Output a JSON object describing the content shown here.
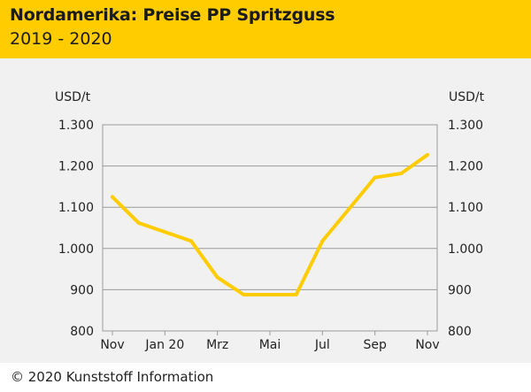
{
  "header": {
    "title": "Nordamerika: Preise PP Spritzguss",
    "subtitle": "2019 - 2020"
  },
  "footer": {
    "copyright": "© 2020 Kunststoff Information"
  },
  "colors": {
    "header_bg": "#ffcc00",
    "plot_bg": "#f1f1f1",
    "line": "#ffcc00",
    "gridline": "#9a9a9a",
    "text": "#222222"
  },
  "chart_data": {
    "type": "line",
    "title": "Nordamerika: Preise PP Spritzguss",
    "subtitle": "2019 - 2020",
    "ylabel_left": "USD/t",
    "ylabel_right": "USD/t",
    "ylim": [
      800,
      1300
    ],
    "yticks": [
      800,
      900,
      1000,
      1100,
      1200,
      1300
    ],
    "ytick_labels": [
      "800",
      "900",
      "1.000",
      "1.100",
      "1.200",
      "1.300"
    ],
    "xlim": [
      0,
      12
    ],
    "xticks": [
      0,
      2,
      4,
      6,
      8,
      10,
      12
    ],
    "xtick_labels": [
      "Nov",
      "Jan 20",
      "Mrz",
      "Mai",
      "Jul",
      "Sep",
      "Nov"
    ],
    "grid": true,
    "series": [
      {
        "name": "PP Spritzguss",
        "x": [
          0,
          1,
          2,
          3,
          4,
          5,
          6,
          7,
          8,
          9,
          10,
          11,
          12
        ],
        "values": [
          1125,
          1062,
          1040,
          1018,
          930,
          888,
          888,
          888,
          1018,
          1095,
          1172,
          1182,
          1227
        ]
      }
    ]
  }
}
